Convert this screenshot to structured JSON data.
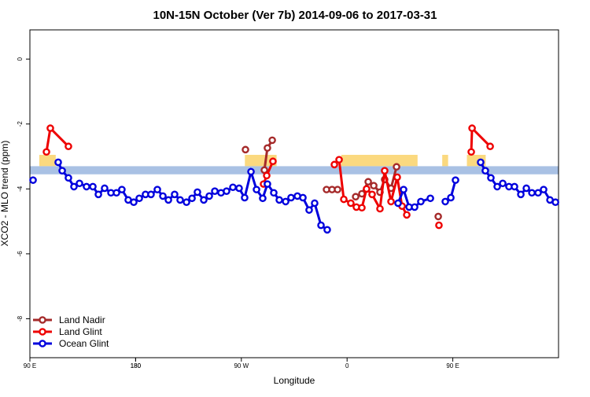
{
  "chart_data": {
    "type": "line",
    "title": "10N-15N October (Ver 7b)   2014-09-06 to 2017-03-31",
    "xlabel": "Longitude",
    "ylabel": "XCO2 - MLO trend (ppm)",
    "xlim": [
      90,
      540
    ],
    "ylim": [
      -9.2,
      0.9
    ],
    "xticks": [
      {
        "value": 90,
        "label": "90 E"
      },
      180,
      {
        "value": 270,
        "label": "90 W"
      },
      {
        "value": 360,
        "label": "0"
      },
      {
        "value": 450,
        "label": "90 E"
      },
      180
    ],
    "yticks": [
      -8,
      -6,
      -4,
      -2,
      0
    ],
    "legend": "bottom-left",
    "band": {
      "color": "#a9c1e4",
      "range": [
        -3.55,
        -3.3
      ]
    },
    "shaded": {
      "color": "#fbd97f",
      "range": [
        -3.3,
        -2.95
      ],
      "spans": [
        [
          98,
          112
        ],
        [
          273,
          300
        ],
        [
          355,
          420
        ],
        [
          441,
          446
        ],
        [
          462,
          478
        ]
      ]
    },
    "series": [
      {
        "name": "Land Nadir",
        "color": "#a52a2a",
        "x": [
          273.5,
          null,
          289.6,
          292.2,
          296.3,
          null,
          342.5,
          347.2,
          351.9,
          null,
          367.3,
          372.6,
          378.0,
          382.7,
          388.0,
          392.0,
          397.4,
          402.1,
          null,
          437.6
        ],
        "values": [
          -2.79,
          null,
          -3.42,
          -2.74,
          -2.5,
          null,
          -4.02,
          -4.02,
          -4.02,
          null,
          -4.24,
          -4.15,
          -3.78,
          -3.9,
          -4.1,
          -3.71,
          -3.98,
          -3.32,
          null,
          -4.85
        ]
      },
      {
        "name": "Land Glint",
        "color": "#ee0000",
        "x": [
          104.1,
          107.4,
          122.8,
          null,
          288.9,
          291.6,
          296.9,
          null,
          349.2,
          353.2,
          357.2,
          363.2,
          367.9,
          372.6,
          376.6,
          381.3,
          388.0,
          392.0,
          397.4,
          402.7,
          406.8,
          410.8,
          null,
          438.2,
          null,
          465.7,
          466.4,
          481.8
        ],
        "values": [
          -2.86,
          -2.13,
          -2.69,
          null,
          -3.85,
          -3.59,
          -3.15,
          null,
          -3.25,
          -3.1,
          -4.32,
          -4.44,
          -4.56,
          -4.58,
          -4.0,
          -4.17,
          -4.61,
          -3.44,
          -4.39,
          -3.64,
          -4.53,
          -4.8,
          null,
          -5.12,
          null,
          -2.86,
          -2.13,
          -2.69
        ]
      },
      {
        "name": "Ocean Glint",
        "color": "#0000dd",
        "x": [
          92.7,
          null,
          114.1,
          117.5,
          122.8,
          127.5,
          132.2,
          138.2,
          143.6,
          148.3,
          153.6,
          159.0,
          163.7,
          168.3,
          173.7,
          178.4,
          183.1,
          188.4,
          193.1,
          198.5,
          203.2,
          207.9,
          213.2,
          217.9,
          223.3,
          228.0,
          232.6,
          238.0,
          242.7,
          247.4,
          252.7,
          257.4,
          262.8,
          268.1,
          272.8,
          278.2,
          282.9,
          288.2,
          292.2,
          297.6,
          302.3,
          307.7,
          312.3,
          317.7,
          322.4,
          327.7,
          332.4,
          337.8,
          343.1,
          null,
          403.4,
          408.1,
          412.8,
          417.5,
          422.8,
          430.9,
          null,
          443.6,
          448.3,
          452.3,
          null,
          473.7,
          477.7,
          482.4,
          487.8,
          492.5,
          497.8,
          502.5,
          507.9,
          512.6,
          517.3,
          522.6,
          527.3,
          532.7,
          537.4
        ],
        "values": [
          -3.73,
          null,
          -3.18,
          -3.44,
          -3.66,
          -3.93,
          -3.83,
          -3.93,
          -3.93,
          -4.17,
          -3.98,
          -4.12,
          -4.12,
          -4.02,
          -4.34,
          -4.41,
          -4.29,
          -4.17,
          -4.17,
          -4.02,
          -4.22,
          -4.34,
          -4.17,
          -4.34,
          -4.41,
          -4.29,
          -4.1,
          -4.34,
          -4.22,
          -4.07,
          -4.12,
          -4.07,
          -3.95,
          -3.98,
          -4.27,
          -3.47,
          -4.02,
          -4.29,
          -3.85,
          -4.12,
          -4.34,
          -4.39,
          -4.27,
          -4.22,
          -4.27,
          -4.65,
          -4.44,
          -5.12,
          -5.26,
          null,
          -4.44,
          -4.02,
          -4.56,
          -4.56,
          -4.39,
          -4.29,
          null,
          -4.39,
          -4.27,
          -3.73,
          null,
          -3.18,
          -3.44,
          -3.66,
          -3.93,
          -3.83,
          -3.93,
          -3.93,
          -4.17,
          -3.98,
          -4.12,
          -4.12,
          -4.02,
          -4.34,
          -4.41
        ]
      }
    ]
  }
}
